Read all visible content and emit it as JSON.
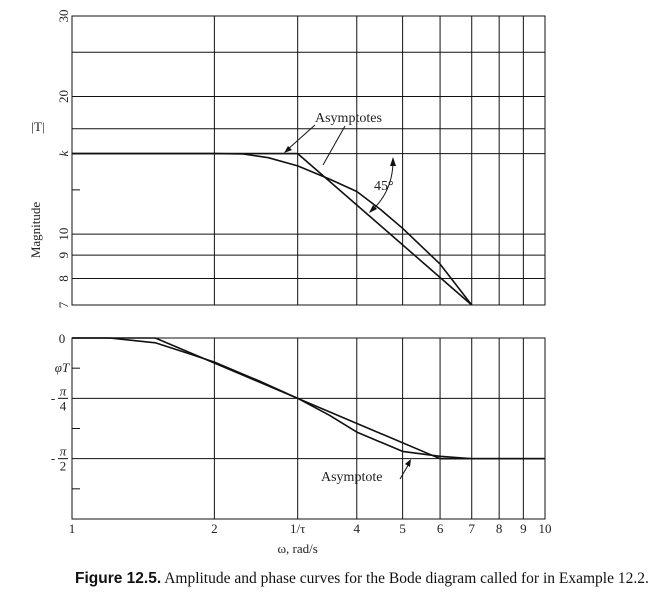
{
  "caption": {
    "label": "Figure 12.5.",
    "text": "Amplitude and phase curves for the Bode diagram called for in Example 12.2."
  },
  "chart_data": [
    {
      "type": "line",
      "panel": "magnitude",
      "ylabel": "Magnitude",
      "ylabel_secondary": "|T|",
      "yscale": "log",
      "ylim": [
        7,
        30
      ],
      "xscale": "log",
      "xlim": [
        1,
        10
      ],
      "yticks": [
        {
          "label": "30",
          "value": 30
        },
        {
          "label": "20",
          "value": 20
        },
        {
          "label": "k",
          "value": 15
        },
        {
          "label": "10",
          "value": 10
        },
        {
          "label": "9",
          "value": 9
        },
        {
          "label": "8",
          "value": 8
        },
        {
          "label": "7",
          "value": 7
        }
      ],
      "series": [
        {
          "style": "exact",
          "x": [
            1,
            2.0,
            2.3,
            2.6,
            3.0,
            3.5,
            4.0,
            4.5,
            5.0,
            6.0,
            7.0
          ],
          "y": [
            15,
            15,
            14.97,
            14.7,
            14.1,
            13.2,
            12.4,
            11.3,
            10.3,
            8.6,
            7.0
          ]
        },
        {
          "style": "asymptote",
          "x": [
            1,
            3.0,
            7.0
          ],
          "y": [
            15,
            15,
            7.0
          ]
        }
      ],
      "annotations": [
        "Asymptotes",
        "45°"
      ]
    },
    {
      "type": "line",
      "panel": "phase",
      "ylabel": "φT",
      "ylim": [
        -0.75,
        0
      ],
      "xscale": "log",
      "xlim": [
        1,
        10
      ],
      "yticks": [
        {
          "label": "0",
          "value": 0
        },
        {
          "label": "-π/4",
          "value": -0.25
        },
        {
          "label": "-π/2",
          "value": -0.5
        }
      ],
      "series": [
        {
          "style": "exact",
          "x": [
            1,
            1.2,
            1.5,
            1.8,
            2.0,
            2.5,
            3.0,
            3.5,
            4.0,
            5.0,
            6.0,
            7.0,
            10.0
          ],
          "y": [
            0,
            0,
            -0.02,
            -0.07,
            -0.1,
            -0.18,
            -0.25,
            -0.32,
            -0.39,
            -0.47,
            -0.49,
            -0.5,
            -0.5
          ]
        },
        {
          "style": "asymptote",
          "x": [
            1,
            1.5,
            6.0,
            10.0
          ],
          "y": [
            0,
            0,
            -0.5,
            -0.5
          ]
        }
      ],
      "annotations": [
        "Asymptote"
      ]
    }
  ],
  "xaxis": {
    "label": "ω, rad/s",
    "ticks": [
      {
        "label": "1",
        "value": 1
      },
      {
        "label": "2",
        "value": 2
      },
      {
        "label": "1/τ",
        "value": 3
      },
      {
        "label": "4",
        "value": 4
      },
      {
        "label": "5",
        "value": 5
      },
      {
        "label": "6",
        "value": 6
      },
      {
        "label": "7",
        "value": 7
      },
      {
        "label": "8",
        "value": 8
      },
      {
        "label": "9",
        "value": 9
      },
      {
        "label": "10",
        "value": 10
      }
    ]
  }
}
